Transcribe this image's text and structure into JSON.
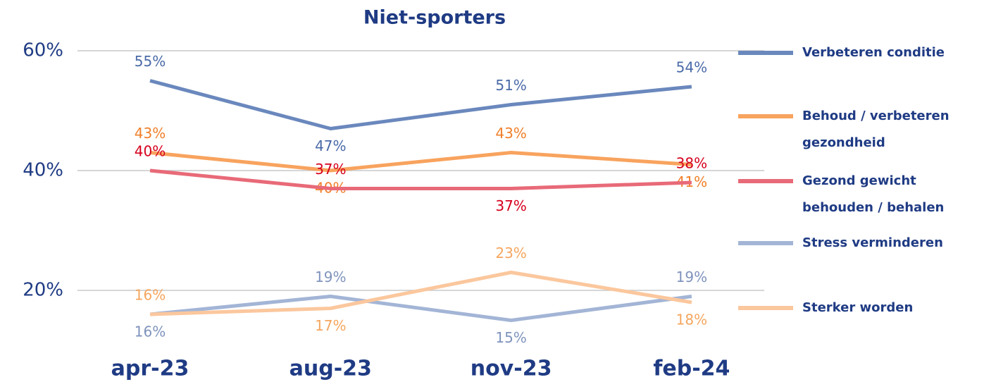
{
  "chart_data": {
    "type": "line",
    "title": "Niet-sporters",
    "categories": [
      "apr-23",
      "aug-23",
      "nov-23",
      "feb-24"
    ],
    "ylim": [
      10,
      60
    ],
    "yticks": [
      {
        "value": 20,
        "label": "20%"
      },
      {
        "value": 40,
        "label": "40%"
      },
      {
        "value": 60,
        "label": "60%"
      }
    ],
    "grid": true,
    "legend": "right",
    "series": [
      {
        "name": "Verbeteren conditie",
        "color": "#6a88bd",
        "label_color": "#4a6aa8",
        "values": [
          55,
          47,
          51,
          54
        ],
        "value_labels": [
          "55%",
          "47%",
          "51%",
          "54%"
        ]
      },
      {
        "name": "Behoud / verbeteren gezondheid",
        "color": "#f8a35e",
        "label_color": "#f07f2a",
        "values": [
          43,
          40,
          43,
          41
        ],
        "value_labels": [
          "43%",
          "40%",
          "43%",
          "41%"
        ]
      },
      {
        "name": "Gezond gewicht behouden / behalen",
        "color": "#e86a78",
        "label_color": "#d6001c",
        "values": [
          40,
          37,
          37,
          38
        ],
        "value_labels": [
          "40%",
          "37%",
          "37%",
          "38%"
        ]
      },
      {
        "name": "Stress verminderen",
        "color": "#a3b5d6",
        "label_color": "#7f93bd",
        "values": [
          16,
          19,
          15,
          19
        ],
        "value_labels": [
          "16%",
          "19%",
          "15%",
          "19%"
        ]
      },
      {
        "name": "Sterker worden",
        "color": "#fbc79d",
        "label_color": "#f5a65e",
        "values": [
          16,
          17,
          23,
          18
        ],
        "value_labels": [
          "16%",
          "17%",
          "23%",
          "18%"
        ]
      }
    ]
  }
}
